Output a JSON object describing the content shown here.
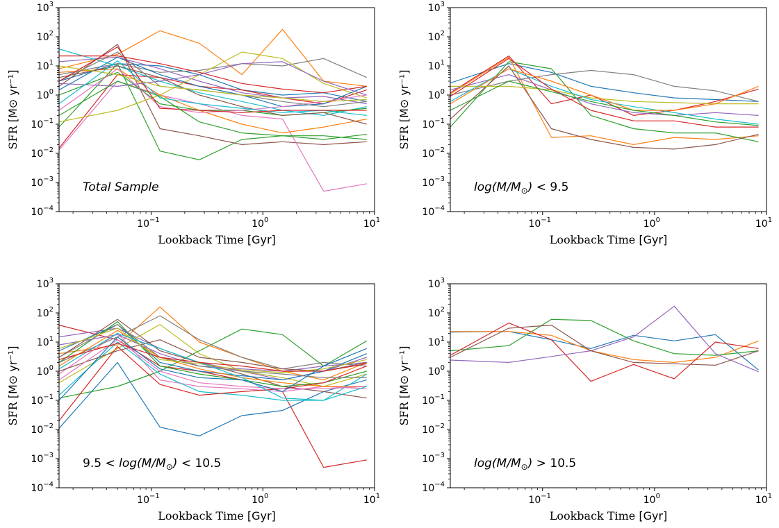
{
  "figure": {
    "panels_count": 4
  },
  "chart_data": [
    {
      "type": "line",
      "annotation": "Total Sample",
      "xlabel_main": "Lookback Time",
      "xlabel_unit": "[Gyr]",
      "ylabel_main": "SFR",
      "ylabel_unit": "[M⊙ yr⁻¹]",
      "x_scale": "log",
      "y_scale": "log",
      "xlim": [
        0.015,
        10
      ],
      "ylim": [
        0.0001,
        1000
      ],
      "x_ticks": [
        {
          "v": 0.1,
          "base": "10",
          "exp": "−1"
        },
        {
          "v": 1,
          "base": "10",
          "exp": "0"
        },
        {
          "v": 10,
          "base": "10",
          "exp": "1"
        }
      ],
      "y_ticks": [
        {
          "v": 0.0001,
          "base": "10",
          "exp": "−4"
        },
        {
          "v": 0.001,
          "base": "10",
          "exp": "−3"
        },
        {
          "v": 0.01,
          "base": "10",
          "exp": "−2"
        },
        {
          "v": 0.1,
          "base": "10",
          "exp": "−1"
        },
        {
          "v": 1,
          "base": "10",
          "exp": "0"
        },
        {
          "v": 10,
          "base": "10",
          "exp": "1"
        },
        {
          "v": 100,
          "base": "10",
          "exp": "2"
        },
        {
          "v": 1000,
          "base": "10",
          "exp": "3"
        }
      ],
      "x": [
        0.015,
        0.05,
        0.12,
        0.27,
        0.65,
        1.5,
        3.5,
        8.5
      ],
      "series": [
        {
          "color": "#1f77b4",
          "values": [
            3,
            12,
            10,
            5,
            1.5,
            1.0,
            1.2,
            0.6
          ]
        },
        {
          "color": "#ff7f0e",
          "values": [
            8,
            25,
            160,
            60,
            5,
            180,
            3,
            2
          ]
        },
        {
          "color": "#2ca02c",
          "values": [
            0.08,
            12,
            0.012,
            0.006,
            0.03,
            0.04,
            0.03,
            0.045
          ]
        },
        {
          "color": "#d62728",
          "values": [
            0.015,
            5,
            4,
            2,
            1.5,
            0.8,
            0.5,
            1.5
          ]
        },
        {
          "color": "#9467bd",
          "values": [
            14,
            20,
            8,
            3,
            1.2,
            0.8,
            0.9,
            0.5
          ]
        },
        {
          "color": "#8c564b",
          "values": [
            2,
            55,
            0.07,
            0.04,
            0.02,
            0.025,
            0.02,
            0.025
          ]
        },
        {
          "color": "#e377c2",
          "values": [
            0.013,
            3,
            1,
            0.5,
            0.2,
            0.15,
            0.0005,
            0.0009
          ]
        },
        {
          "color": "#7f7f7f",
          "values": [
            5,
            12,
            6,
            7,
            12,
            10,
            18,
            4
          ]
        },
        {
          "color": "#bcbd22",
          "values": [
            0.12,
            0.3,
            1,
            5,
            30,
            18,
            2.5,
            0.8
          ]
        },
        {
          "color": "#17becf",
          "values": [
            38,
            10,
            3,
            1.2,
            0.6,
            0.3,
            0.2,
            0.4
          ]
        },
        {
          "color": "#1f77b4",
          "values": [
            1.5,
            20,
            5,
            2,
            1,
            0.4,
            0.5,
            2
          ]
        },
        {
          "color": "#ff7f0e",
          "values": [
            6,
            8,
            1,
            0.3,
            0.1,
            0.05,
            0.08,
            0.15
          ]
        },
        {
          "color": "#2ca02c",
          "values": [
            1,
            6,
            0.5,
            0.3,
            0.3,
            0.2,
            0.25,
            0.35
          ]
        },
        {
          "color": "#d62728",
          "values": [
            22,
            22,
            12,
            6,
            2.5,
            1.6,
            1.2,
            2
          ]
        },
        {
          "color": "#9467bd",
          "values": [
            2.5,
            2,
            3,
            5,
            12,
            14,
            3,
            1
          ]
        },
        {
          "color": "#8c564b",
          "values": [
            4,
            10,
            4,
            1,
            0.4,
            0.2,
            0.25,
            0.1
          ]
        },
        {
          "color": "#e377c2",
          "values": [
            0.3,
            8,
            0.4,
            0.25,
            0.3,
            0.4,
            0.6,
            1
          ]
        },
        {
          "color": "#7f7f7f",
          "values": [
            3,
            30,
            2,
            1.5,
            1,
            0.6,
            0.4,
            0.6
          ]
        },
        {
          "color": "#bcbd22",
          "values": [
            10,
            5,
            2,
            1.5,
            1,
            0.8,
            0.6,
            0.7
          ]
        },
        {
          "color": "#17becf",
          "values": [
            0.5,
            15,
            0.8,
            0.5,
            0.35,
            0.25,
            0.3,
            0.2
          ]
        },
        {
          "color": "#d62728",
          "values": [
            3,
            45,
            0.35,
            0.3,
            0.25,
            0.3,
            0.3,
            0.3
          ]
        },
        {
          "color": "#2ca02c",
          "values": [
            0.2,
            3,
            0.9,
            0.12,
            0.05,
            0.04,
            0.04,
            0.03
          ]
        }
      ]
    },
    {
      "type": "line",
      "annotation": "log(M/M⊙) < 9.5",
      "xlabel_main": "Lookback Time",
      "xlabel_unit": "[Gyr]",
      "ylabel_main": "SFR",
      "ylabel_unit": "[M⊙ yr⁻¹]",
      "x_scale": "log",
      "y_scale": "log",
      "xlim": [
        0.015,
        10
      ],
      "ylim": [
        0.0001,
        1000
      ],
      "x_ticks": [
        {
          "v": 0.1,
          "base": "10",
          "exp": "−1"
        },
        {
          "v": 1,
          "base": "10",
          "exp": "0"
        },
        {
          "v": 10,
          "base": "10",
          "exp": "1"
        }
      ],
      "y_ticks": [
        {
          "v": 0.0001,
          "base": "10",
          "exp": "−4"
        },
        {
          "v": 0.001,
          "base": "10",
          "exp": "−3"
        },
        {
          "v": 0.01,
          "base": "10",
          "exp": "−2"
        },
        {
          "v": 0.1,
          "base": "10",
          "exp": "−1"
        },
        {
          "v": 1,
          "base": "10",
          "exp": "0"
        },
        {
          "v": 10,
          "base": "10",
          "exp": "1"
        },
        {
          "v": 100,
          "base": "10",
          "exp": "2"
        },
        {
          "v": 1000,
          "base": "10",
          "exp": "3"
        }
      ],
      "x": [
        0.015,
        0.05,
        0.12,
        0.27,
        0.65,
        1.5,
        3.5,
        8.5
      ],
      "series": [
        {
          "color": "#1f77b4",
          "values": [
            2.6,
            12,
            6,
            2,
            1.2,
            0.8,
            0.7,
            0.6
          ]
        },
        {
          "color": "#ff7f0e",
          "values": [
            1.1,
            20,
            0.035,
            0.04,
            0.02,
            0.035,
            0.03,
            0.04
          ]
        },
        {
          "color": "#2ca02c",
          "values": [
            0.08,
            14,
            8,
            0.2,
            0.07,
            0.05,
            0.05,
            0.025
          ]
        },
        {
          "color": "#d62728",
          "values": [
            1.2,
            22,
            0.5,
            1,
            0.2,
            0.3,
            0.6,
            1.6
          ]
        },
        {
          "color": "#9467bd",
          "values": [
            1.5,
            5,
            1.5,
            0.5,
            0.25,
            0.2,
            0.25,
            0.2
          ]
        },
        {
          "color": "#8c564b",
          "values": [
            0.15,
            10,
            0.07,
            0.03,
            0.016,
            0.014,
            0.02,
            0.045
          ]
        },
        {
          "color": "#7f7f7f",
          "values": [
            1,
            3,
            5,
            7,
            5,
            2,
            1.4,
            0.6
          ]
        },
        {
          "color": "#bcbd22",
          "values": [
            2,
            2,
            1.5,
            0.8,
            0.6,
            0.55,
            0.5,
            0.5
          ]
        },
        {
          "color": "#17becf",
          "values": [
            0.6,
            8,
            2,
            0.7,
            0.4,
            0.25,
            0.15,
            0.1
          ]
        },
        {
          "color": "#d62728",
          "values": [
            0.9,
            18,
            1.6,
            0.3,
            0.13,
            0.13,
            0.08,
            0.08
          ]
        },
        {
          "color": "#ff7f0e",
          "values": [
            0.5,
            8,
            3,
            1,
            0.3,
            0.3,
            0.5,
            2
          ]
        },
        {
          "color": "#2ca02c",
          "values": [
            0.3,
            3,
            1.3,
            0.6,
            0.3,
            0.2,
            0.12,
            0.09
          ]
        }
      ]
    },
    {
      "type": "line",
      "annotation": "9.5 < log(M/M⊙) < 10.5",
      "xlabel_main": "Lookback Time",
      "xlabel_unit": "[Gyr]",
      "ylabel_main": "SFR",
      "ylabel_unit": "[M⊙ yr⁻¹]",
      "x_scale": "log",
      "y_scale": "log",
      "xlim": [
        0.015,
        10
      ],
      "ylim": [
        0.0001,
        1000
      ],
      "x_ticks": [
        {
          "v": 0.1,
          "base": "10",
          "exp": "−1"
        },
        {
          "v": 1,
          "base": "10",
          "exp": "0"
        },
        {
          "v": 10,
          "base": "10",
          "exp": "1"
        }
      ],
      "y_ticks": [
        {
          "v": 0.0001,
          "base": "10",
          "exp": "−4"
        },
        {
          "v": 0.001,
          "base": "10",
          "exp": "−3"
        },
        {
          "v": 0.01,
          "base": "10",
          "exp": "−2"
        },
        {
          "v": 0.1,
          "base": "10",
          "exp": "−1"
        },
        {
          "v": 1,
          "base": "10",
          "exp": "0"
        },
        {
          "v": 10,
          "base": "10",
          "exp": "1"
        },
        {
          "v": 100,
          "base": "10",
          "exp": "2"
        },
        {
          "v": 1000,
          "base": "10",
          "exp": "3"
        }
      ],
      "x": [
        0.015,
        0.05,
        0.12,
        0.27,
        0.65,
        1.5,
        3.5,
        8.5
      ],
      "series": [
        {
          "color": "#d62728",
          "values": [
            38,
            12,
            1.5,
            1,
            0.5,
            0.2,
            0.0005,
            0.0009
          ]
        },
        {
          "color": "#1f77b4",
          "values": [
            0.011,
            2,
            0.012,
            0.006,
            0.03,
            0.045,
            0.2,
            0.5
          ]
        },
        {
          "color": "#2ca02c",
          "values": [
            0.12,
            0.3,
            1,
            5,
            28,
            18,
            1.5,
            11
          ]
        },
        {
          "color": "#ff7f0e",
          "values": [
            4,
            8,
            160,
            10,
            3,
            1,
            0.5,
            2
          ]
        },
        {
          "color": "#9467bd",
          "values": [
            15,
            30,
            6,
            2,
            1,
            0.5,
            1,
            3
          ]
        },
        {
          "color": "#8c564b",
          "values": [
            3,
            60,
            5,
            2,
            0.8,
            0.3,
            0.2,
            0.12
          ]
        },
        {
          "color": "#e377c2",
          "values": [
            0.8,
            20,
            0.5,
            0.3,
            0.25,
            0.2,
            0.3,
            0.25
          ]
        },
        {
          "color": "#7f7f7f",
          "values": [
            2,
            15,
            80,
            12,
            3,
            1.2,
            2,
            1.5
          ]
        },
        {
          "color": "#bcbd22",
          "values": [
            0.4,
            6,
            40,
            4,
            1,
            0.6,
            0.3,
            0.8
          ]
        },
        {
          "color": "#17becf",
          "values": [
            0.15,
            10,
            0.8,
            0.2,
            0.15,
            0.1,
            0.1,
            0.8
          ]
        },
        {
          "color": "#1f77b4",
          "values": [
            5,
            40,
            2,
            1,
            0.7,
            0.5,
            1,
            4
          ]
        },
        {
          "color": "#ff7f0e",
          "values": [
            1.5,
            25,
            3,
            1.2,
            0.6,
            0.4,
            0.3,
            0.3
          ]
        },
        {
          "color": "#2ca02c",
          "values": [
            2,
            50,
            1.5,
            0.8,
            0.5,
            0.3,
            0.4,
            1
          ]
        },
        {
          "color": "#d62728",
          "values": [
            0.02,
            7,
            0.35,
            0.15,
            0.2,
            0.25,
            0.4,
            1.5
          ]
        },
        {
          "color": "#9467bd",
          "values": [
            8,
            18,
            4,
            1.5,
            1.2,
            1,
            1.5,
            2
          ]
        },
        {
          "color": "#8c564b",
          "values": [
            1,
            5,
            12,
            3,
            2,
            1.2,
            1,
            2
          ]
        },
        {
          "color": "#e377c2",
          "values": [
            0.5,
            12,
            1,
            0.4,
            0.3,
            0.25,
            0.25,
            0.3
          ]
        },
        {
          "color": "#7f7f7f",
          "values": [
            3,
            40,
            3,
            1.5,
            1,
            0.8,
            0.6,
            0.6
          ]
        },
        {
          "color": "#bcbd22",
          "values": [
            6,
            30,
            2.5,
            1.8,
            1.1,
            0.9,
            1.2,
            2.5
          ]
        },
        {
          "color": "#17becf",
          "values": [
            1.2,
            20,
            6,
            2,
            0.6,
            0.12,
            0.1,
            0.3
          ]
        },
        {
          "color": "#d62728",
          "values": [
            2.5,
            9,
            3,
            2,
            1.5,
            1,
            1,
            1.8
          ]
        },
        {
          "color": "#1f77b4",
          "values": [
            0.1,
            15,
            1.2,
            0.6,
            0.5,
            0.2,
            1.5,
            6
          ]
        }
      ]
    },
    {
      "type": "line",
      "annotation": "log(M/M⊙) > 10.5",
      "xlabel_main": "Lookback Time",
      "xlabel_unit": "[Gyr]",
      "ylabel_main": "SFR",
      "ylabel_unit": "[M⊙ yr⁻¹]",
      "x_scale": "log",
      "y_scale": "log",
      "xlim": [
        0.015,
        10
      ],
      "ylim": [
        0.0001,
        1000
      ],
      "x_ticks": [
        {
          "v": 0.1,
          "base": "10",
          "exp": "−1"
        },
        {
          "v": 1,
          "base": "10",
          "exp": "0"
        },
        {
          "v": 10,
          "base": "10",
          "exp": "1"
        }
      ],
      "y_ticks": [
        {
          "v": 0.0001,
          "base": "10",
          "exp": "−4"
        },
        {
          "v": 0.001,
          "base": "10",
          "exp": "−3"
        },
        {
          "v": 0.01,
          "base": "10",
          "exp": "−2"
        },
        {
          "v": 0.1,
          "base": "10",
          "exp": "−1"
        },
        {
          "v": 1,
          "base": "10",
          "exp": "0"
        },
        {
          "v": 10,
          "base": "10",
          "exp": "1"
        },
        {
          "v": 100,
          "base": "10",
          "exp": "2"
        },
        {
          "v": 1000,
          "base": "10",
          "exp": "3"
        }
      ],
      "x": [
        0.015,
        0.05,
        0.12,
        0.27,
        0.65,
        1.5,
        3.5,
        8.5
      ],
      "series": [
        {
          "color": "#1f77b4",
          "values": [
            22,
            23,
            12,
            6,
            17,
            11,
            18,
            1.1
          ]
        },
        {
          "color": "#ff7f0e",
          "values": [
            23,
            23,
            17,
            5,
            2.5,
            2,
            3,
            11
          ]
        },
        {
          "color": "#2ca02c",
          "values": [
            5,
            7.5,
            60,
            55,
            11,
            4,
            3.5,
            5
          ]
        },
        {
          "color": "#d62728",
          "values": [
            3.5,
            45,
            12,
            0.45,
            1.7,
            0.55,
            10,
            6
          ]
        },
        {
          "color": "#9467bd",
          "values": [
            2.4,
            2,
            3.2,
            5,
            15,
            170,
            4,
            0.95
          ]
        },
        {
          "color": "#8c564b",
          "values": [
            3,
            30,
            38,
            5,
            2,
            1.8,
            1.6,
            5
          ]
        }
      ]
    }
  ]
}
